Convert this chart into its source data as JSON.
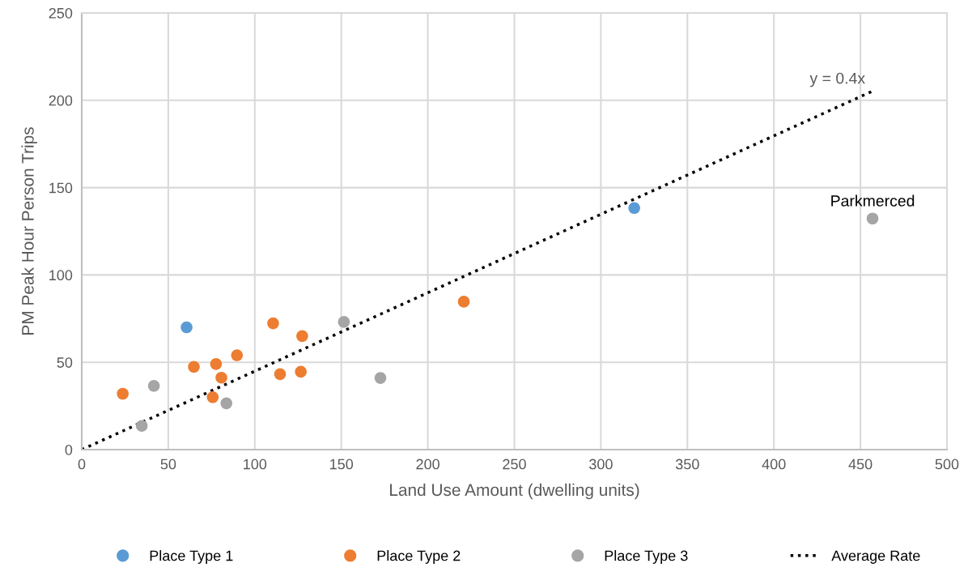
{
  "chart_data": {
    "type": "scatter",
    "xlabel": "Land Use Amount (dwelling units)",
    "ylabel": "PM Peak Hour Person Trips",
    "xlim": [
      0,
      500
    ],
    "xticks": [
      0,
      50,
      100,
      150,
      200,
      250,
      300,
      350,
      400,
      450,
      500
    ],
    "ylim": [
      0,
      250
    ],
    "yticks": [
      0,
      50,
      100,
      150,
      200,
      250
    ],
    "grid": true,
    "legend": "bottom",
    "marker": "circle",
    "series": [
      {
        "name": "Place Type 1",
        "color": "#5b9bd5",
        "x": [
          60.6,
          319.3
        ],
        "values": [
          70.0,
          138.3
        ]
      },
      {
        "name": "Place Type 2",
        "color": "#ed7d31",
        "x": [
          23.7,
          64.8,
          77.6,
          80.7,
          75.7,
          89.7,
          110.6,
          127.4,
          114.6,
          126.6,
          220.8
        ],
        "values": [
          32.0,
          47.4,
          49.0,
          41.2,
          30.0,
          54.0,
          72.3,
          65.0,
          43.2,
          44.6,
          84.7
        ]
      },
      {
        "name": "Place Type 3",
        "color": "#a5a5a5",
        "x": [
          41.7,
          34.7,
          83.6,
          151.5,
          172.6,
          457
        ],
        "values": [
          36.5,
          13.6,
          26.5,
          73.1,
          41.0,
          132.3
        ]
      },
      {
        "name": "Average Rate",
        "type": "line",
        "color": "#000000",
        "line_style": "dotted",
        "marker": "none",
        "x": [
          0,
          458
        ],
        "values": [
          0,
          205.7
        ]
      }
    ],
    "annotations": [
      {
        "text": "y = 0.4x",
        "x": 458,
        "y": 205.7
      },
      {
        "text": "Parkmerced",
        "x": 457,
        "y": 132.3
      }
    ]
  }
}
